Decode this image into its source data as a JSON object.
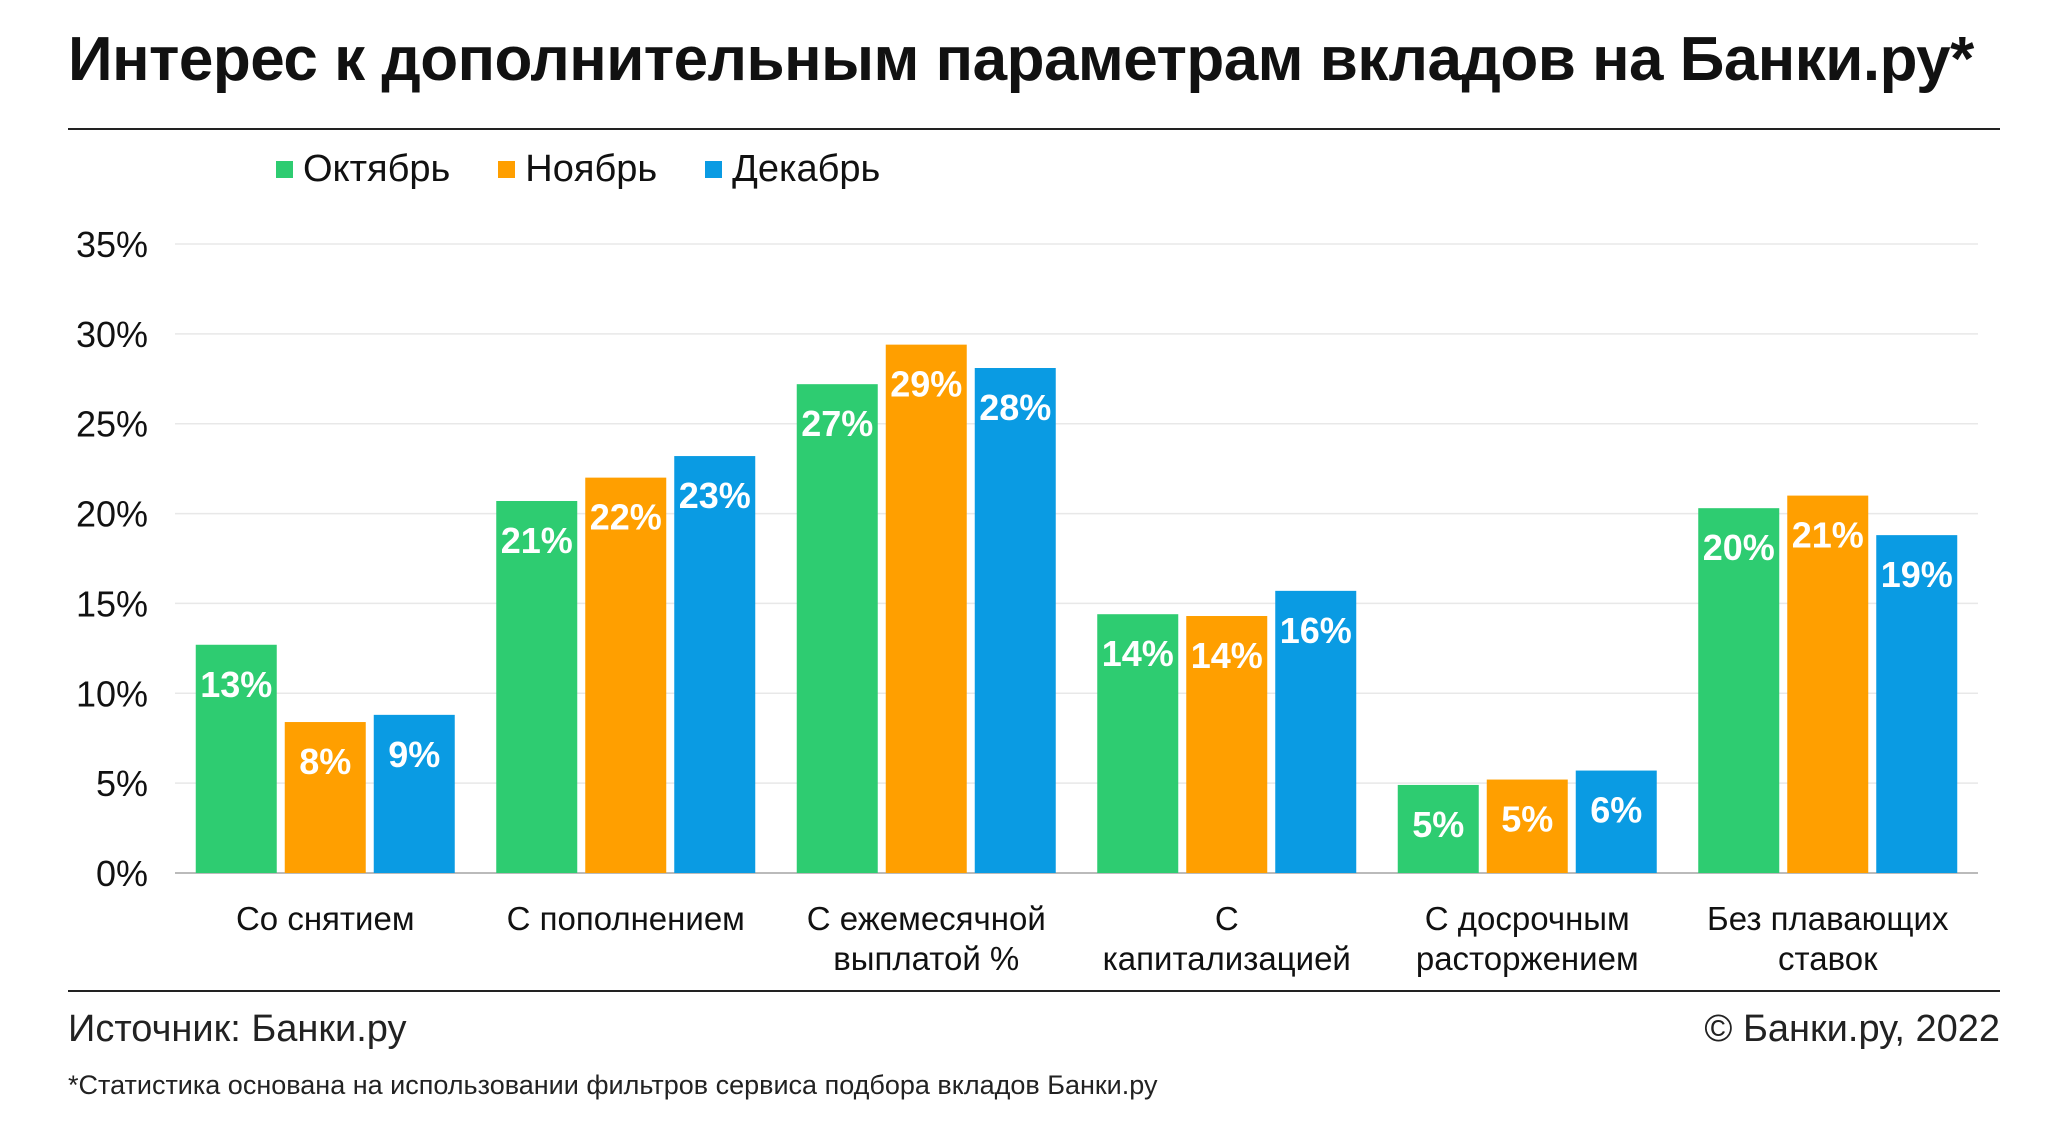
{
  "title": "Интерес к дополнительным параметрам вкладов на Банки.ру*",
  "source": "Источник: Банки.ру",
  "copyright": "© Банки.ру, 2022",
  "footnote": "*Статистика основана на использовании фильтров сервиса подбора вкладов Банки.ру",
  "chart_data": {
    "type": "bar",
    "title": "Интерес к дополнительным параметрам вкладов на Банки.ру*",
    "categories": [
      [
        "Со снятием"
      ],
      [
        "С пополнением"
      ],
      [
        "С ежемесячной",
        "выплатой %"
      ],
      [
        "С",
        "капитализацией"
      ],
      [
        "С досрочным",
        "расторжением"
      ],
      [
        "Без плавающих",
        "ставок"
      ]
    ],
    "series": [
      {
        "name": "Октябрь",
        "color": "#2ecc71",
        "values": [
          12.7,
          20.7,
          27.2,
          14.4,
          4.9,
          20.3
        ],
        "labels": [
          "13%",
          "21%",
          "27%",
          "14%",
          "5%",
          "20%"
        ]
      },
      {
        "name": "Ноябрь",
        "color": "#ff9f00",
        "values": [
          8.4,
          22.0,
          29.4,
          14.3,
          5.2,
          21.0
        ],
        "labels": [
          "8%",
          "22%",
          "29%",
          "14%",
          "5%",
          "21%"
        ]
      },
      {
        "name": "Декабрь",
        "color": "#0a9be3",
        "values": [
          8.8,
          23.2,
          28.1,
          15.7,
          5.7,
          18.8
        ],
        "labels": [
          "9%",
          "23%",
          "28%",
          "16%",
          "6%",
          "19%"
        ]
      }
    ],
    "yticks": [
      "0%",
      "5%",
      "10%",
      "15%",
      "20%",
      "25%",
      "30%",
      "35%"
    ],
    "ylim": [
      0,
      35
    ],
    "grid": true,
    "legend_position": "top-left"
  }
}
